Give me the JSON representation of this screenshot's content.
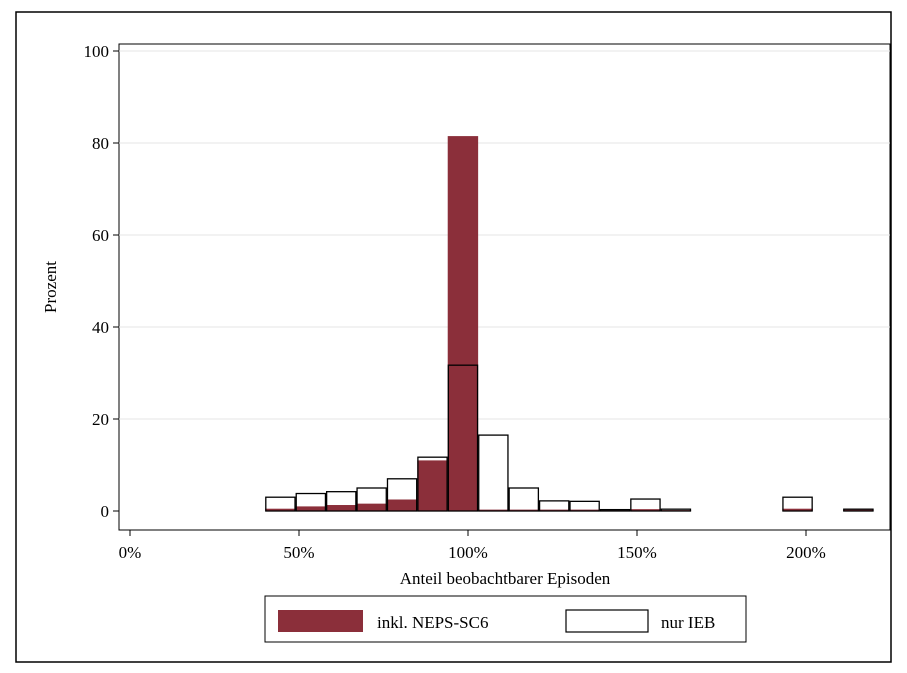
{
  "chart_data": {
    "type": "bar",
    "title": "",
    "xlabel": "Anteil beobachtbarer Episoden",
    "ylabel": "Prozent",
    "xlim": [
      0,
      222
    ],
    "ylim": [
      0,
      100
    ],
    "x_ticks": [
      0,
      50,
      100,
      150,
      200
    ],
    "x_tick_labels": [
      "0%",
      "50%",
      "100%",
      "150%",
      "200%"
    ],
    "y_ticks": [
      0,
      20,
      40,
      60,
      80,
      100
    ],
    "y_tick_labels": [
      "0",
      "20",
      "40",
      "60",
      "80",
      "100"
    ],
    "grid": "horizontal",
    "legend_position": "bottom",
    "bin_width": 9,
    "bins": [
      44.5,
      53.5,
      62.5,
      71.5,
      80.5,
      89.5,
      98.5,
      107.5,
      116.5,
      125.5,
      134.5,
      143.5,
      152.5,
      161.5,
      197.5,
      215.5
    ],
    "series": [
      {
        "name": "inkl. NEPS-SC6",
        "style": "filled",
        "color": "#8b2f3a",
        "values": [
          0.5,
          1.0,
          1.3,
          1.6,
          2.5,
          11.0,
          81.5,
          0.3,
          0.3,
          0.3,
          0.3,
          0.2,
          0.4,
          0.2,
          0.5,
          0.3
        ]
      },
      {
        "name": "nur IEB",
        "style": "outline",
        "color": "#000000",
        "values": [
          3.0,
          3.8,
          4.2,
          5.0,
          7.0,
          11.7,
          31.7,
          16.5,
          5.0,
          2.2,
          2.1,
          0.3,
          2.6,
          0.4,
          3.0,
          0.4
        ]
      }
    ]
  }
}
